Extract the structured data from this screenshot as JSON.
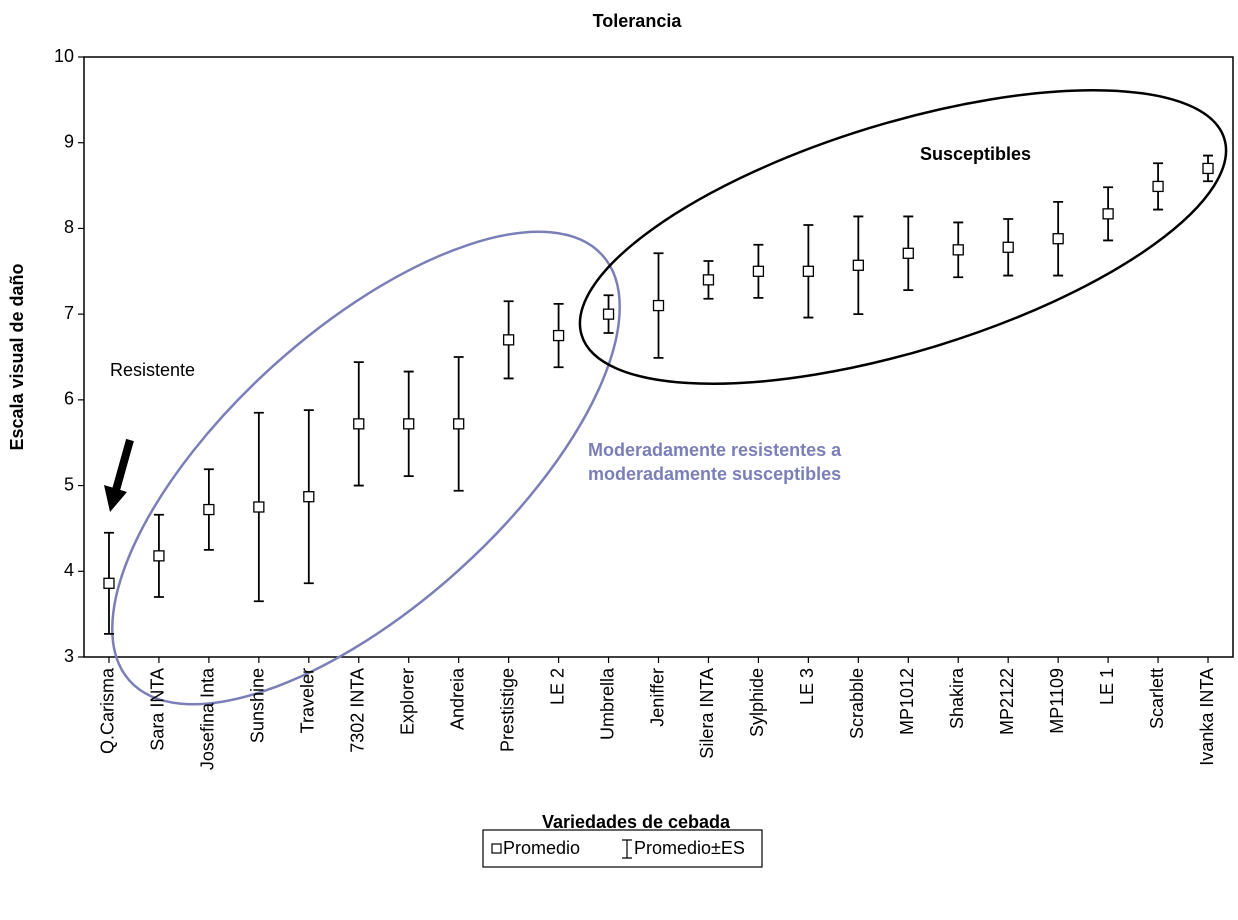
{
  "chart_data": {
    "type": "errorbar",
    "title": "Tolerancia",
    "x_label": "Variedades de cebada",
    "y_label": "Escala visual de daño",
    "categories": [
      "Q.Carisma",
      "Sara INTA",
      "Josefina Inta",
      "Sunshine",
      "Traveler",
      "7302 INTA",
      "Explorer",
      "Andreia",
      "Prestistige",
      "LE 2",
      "Umbrella",
      "Jeniffer",
      "Silera INTA",
      "Sylphide",
      "LE 3",
      "Scrabble",
      "MP1012",
      "Shakira",
      "MP2122",
      "MP1109",
      "LE 1",
      "Scarlett",
      "Ivanka INTA"
    ],
    "series": [
      {
        "name": "Promedio",
        "error_name": "Promedio±ES",
        "color": "#000000",
        "values": [
          3.86,
          4.18,
          4.72,
          4.75,
          4.87,
          5.72,
          5.72,
          5.72,
          6.7,
          6.75,
          7.0,
          7.1,
          7.4,
          7.5,
          7.5,
          7.57,
          7.71,
          7.75,
          7.78,
          7.88,
          8.17,
          8.49,
          8.7
        ],
        "errors": [
          0.59,
          0.48,
          0.47,
          1.1,
          1.01,
          0.72,
          0.61,
          0.78,
          0.45,
          0.37,
          0.22,
          0.61,
          0.22,
          0.31,
          0.54,
          0.57,
          0.43,
          0.32,
          0.33,
          0.43,
          0.31,
          0.27,
          0.15
        ]
      }
    ],
    "ylim": [
      3,
      10
    ],
    "yticks": [
      3,
      4,
      5,
      6,
      7,
      8,
      9,
      10
    ],
    "annotations": {
      "resistant": "Resistente",
      "moderate": [
        "Moderadamente resistentes a",
        "moderadamente susceptibles"
      ],
      "susceptible": "Susceptibles"
    }
  }
}
